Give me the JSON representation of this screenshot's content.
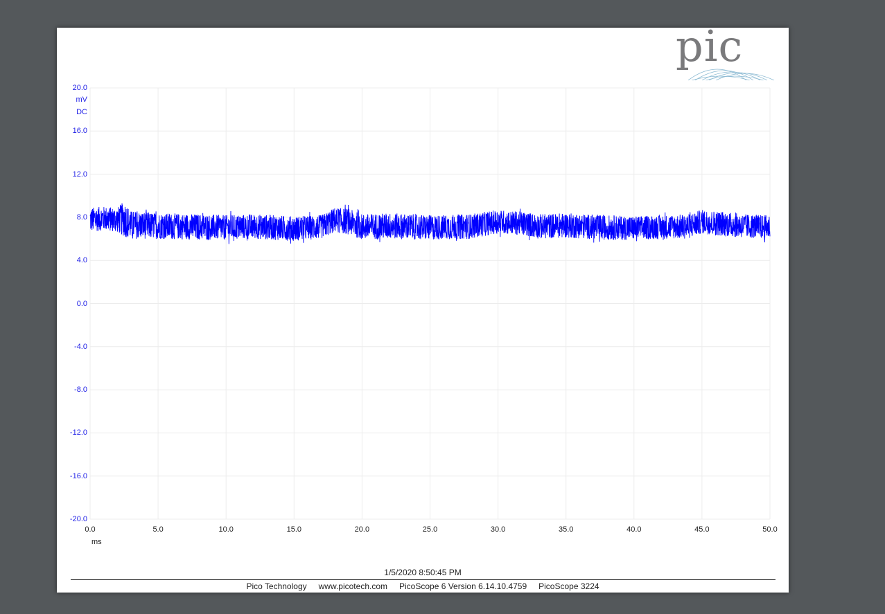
{
  "chart_data": {
    "type": "line",
    "title": "",
    "xlabel": "ms",
    "ylabel_unit": "mV",
    "ylabel_coupling": "DC",
    "xlim": [
      0,
      50
    ],
    "ylim": [
      -20,
      20
    ],
    "x_ticks": [
      "0.0",
      "5.0",
      "10.0",
      "15.0",
      "20.0",
      "25.0",
      "30.0",
      "35.0",
      "40.0",
      "45.0",
      "50.0"
    ],
    "y_ticks": [
      "20.0",
      "16.0",
      "12.0",
      "8.0",
      "4.0",
      "0.0",
      "-4.0",
      "-8.0",
      "-12.0",
      "-16.0",
      "-20.0"
    ],
    "grid": true,
    "series": [
      {
        "color": "#0000ff",
        "style": "noise envelope",
        "x": [
          0.0,
          1.0,
          2.0,
          2.5,
          3.0,
          5.0,
          8.0,
          10.0,
          12.0,
          15.0,
          17.0,
          18.0,
          19.0,
          20.0,
          22.0,
          25.0,
          28.0,
          30.0,
          32.0,
          33.0,
          35.0,
          38.0,
          40.0,
          42.0,
          44.0,
          45.0,
          46.0,
          48.0,
          50.0
        ],
        "upper": [
          8.9,
          9.0,
          8.9,
          9.5,
          8.6,
          8.4,
          8.3,
          8.2,
          8.3,
          8.1,
          8.2,
          8.9,
          8.8,
          8.3,
          8.4,
          8.2,
          8.3,
          8.7,
          8.5,
          8.3,
          8.4,
          8.2,
          8.1,
          8.2,
          8.3,
          8.7,
          8.6,
          8.3,
          8.2
        ],
        "lower": [
          6.6,
          6.8,
          6.6,
          6.2,
          6.0,
          6.0,
          5.9,
          5.9,
          6.0,
          5.8,
          6.0,
          6.6,
          6.4,
          5.9,
          6.0,
          5.9,
          6.0,
          6.5,
          6.3,
          6.0,
          6.1,
          5.9,
          5.9,
          6.0,
          6.0,
          6.5,
          6.3,
          6.1,
          6.0
        ]
      }
    ]
  },
  "timestamp": "1/5/2020 8:50:45 PM",
  "footer": {
    "company": "Pico Technology",
    "website": "www.picotech.com",
    "software": "PicoScope 6 Version 6.14.10.4759",
    "device": "PicoScope 3224"
  },
  "logo": {
    "text": "pic",
    "color": "#7a7a7c",
    "arc_color": "#8fbcd4"
  }
}
